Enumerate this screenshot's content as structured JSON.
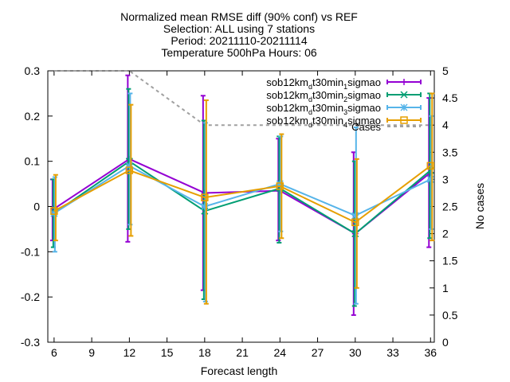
{
  "chart_data": {
    "type": "line",
    "title_lines": [
      "Normalized mean RMSE diff (90% conf) vs REF",
      "Selection: ALL using     7 stations",
      "Period: 20211110-20211114",
      "Temperature 500hPa   Hours: 06"
    ],
    "xlabel": "Forecast length",
    "ylabel": "",
    "y2label": "No cases",
    "xlim": [
      5.5,
      36.3
    ],
    "ylim": [
      -0.3,
      0.3
    ],
    "y2lim": [
      0,
      5
    ],
    "xticks": [
      6,
      9,
      12,
      15,
      18,
      21,
      24,
      27,
      30,
      33,
      36
    ],
    "yticks": [
      -0.3,
      -0.2,
      -0.1,
      0,
      0.1,
      0.2,
      0.3
    ],
    "ytick_labels": [
      "-0.3",
      "-0.2",
      "-0.1",
      "0",
      "0.1",
      "0.2",
      "0.3"
    ],
    "y2ticks": [
      0,
      0.5,
      1,
      1.5,
      2,
      2.5,
      3,
      3.5,
      4,
      4.5,
      5
    ],
    "y2tick_labels": [
      "0",
      "0.5",
      "1",
      "1.5",
      "2",
      "2.5",
      "3",
      "3.5",
      "4",
      "4.5",
      "5"
    ],
    "legend_position": "top-right",
    "grid": false,
    "x": [
      6,
      12,
      18,
      24,
      30,
      36
    ],
    "series": [
      {
        "name": "sob12km_dt30min_1sigmao",
        "name_parts": [
          "sob12km",
          "d",
          "t30min",
          "1",
          "sigmao"
        ],
        "color": "#9400d3",
        "marker": "plus",
        "values": [
          -0.005,
          0.105,
          0.03,
          0.035,
          -0.06,
          0.075
        ],
        "err_low": [
          -0.075,
          -0.078,
          -0.185,
          -0.075,
          -0.24,
          -0.09
        ],
        "err_high": [
          0.06,
          0.29,
          0.245,
          0.15,
          0.12,
          0.24
        ]
      },
      {
        "name": "sob12km_dt30min_2sigmao",
        "name_parts": [
          "sob12km",
          "d",
          "t30min",
          "2",
          "sigmao"
        ],
        "color": "#009e73",
        "marker": "cross",
        "values": [
          -0.015,
          0.1,
          -0.01,
          0.04,
          -0.06,
          0.08
        ],
        "err_low": [
          -0.09,
          -0.05,
          -0.205,
          -0.08,
          -0.22,
          -0.07
        ],
        "err_high": [
          0.06,
          0.26,
          0.19,
          0.155,
          0.1,
          0.25
        ]
      },
      {
        "name": "sob12km_dt30min_3sigmao",
        "name_parts": [
          "sob12km",
          "d",
          "t30min",
          "3",
          "sigmao"
        ],
        "color": "#56b4e9",
        "marker": "star",
        "values": [
          -0.015,
          0.09,
          0.0,
          0.05,
          -0.02,
          0.06
        ],
        "err_low": [
          -0.1,
          -0.04,
          -0.21,
          -0.055,
          -0.215,
          -0.05
        ],
        "err_high": [
          0.065,
          0.25,
          0.185,
          0.155,
          0.175,
          0.2
        ]
      },
      {
        "name": "sob12km_dt30min_4sigmao",
        "name_parts": [
          "sob12km",
          "d",
          "t30min",
          "4",
          "sigmao"
        ],
        "color": "#e69f00",
        "marker": "square",
        "values": [
          -0.01,
          0.08,
          0.02,
          0.045,
          -0.035,
          0.09
        ],
        "err_low": [
          -0.075,
          -0.065,
          -0.215,
          -0.07,
          -0.18,
          -0.075
        ],
        "err_high": [
          0.07,
          0.225,
          0.235,
          0.16,
          0.105,
          0.25
        ]
      }
    ],
    "cases": {
      "name": "Cases",
      "color": "#a0a0a0",
      "axis": "y2",
      "x": [
        6,
        12,
        18,
        24,
        30,
        36
      ],
      "values": [
        5,
        5,
        4,
        4,
        4,
        4
      ]
    }
  }
}
